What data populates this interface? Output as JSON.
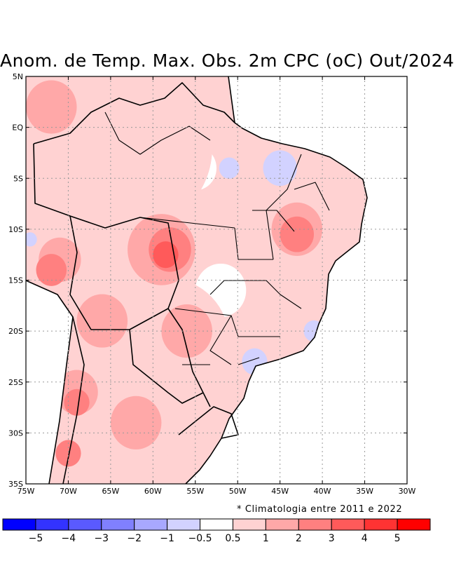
{
  "title": "Anom. de Temp. Max. Obs. 2m CPC (oC) Out/2024",
  "note": "* Climatologia entre 2011 e 2022",
  "map": {
    "lon_min": -75,
    "lon_max": -30,
    "lat_min": -35,
    "lat_max": 5,
    "lat_ticks": [
      {
        "value": 5,
        "label": "5N"
      },
      {
        "value": 0,
        "label": "EQ"
      },
      {
        "value": -5,
        "label": "5S"
      },
      {
        "value": -10,
        "label": "10S"
      },
      {
        "value": -15,
        "label": "15S"
      },
      {
        "value": -20,
        "label": "20S"
      },
      {
        "value": -25,
        "label": "25S"
      },
      {
        "value": -30,
        "label": "30S"
      },
      {
        "value": -35,
        "label": "35S"
      }
    ],
    "lon_ticks": [
      {
        "value": -75,
        "label": "75W"
      },
      {
        "value": -70,
        "label": "70W"
      },
      {
        "value": -65,
        "label": "65W"
      },
      {
        "value": -60,
        "label": "60W"
      },
      {
        "value": -55,
        "label": "55W"
      },
      {
        "value": -50,
        "label": "50W"
      },
      {
        "value": -45,
        "label": "45W"
      },
      {
        "value": -40,
        "label": "40W"
      },
      {
        "value": -35,
        "label": "35W"
      },
      {
        "value": -30,
        "label": "30W"
      }
    ]
  },
  "colorbar": {
    "colors": [
      "#0000ff",
      "#3333ff",
      "#5a5aff",
      "#8080ff",
      "#a8a8ff",
      "#d2d2ff",
      "#ffffff",
      "#ffd2d2",
      "#ffa8a8",
      "#ff8080",
      "#ff5a5a",
      "#ff3333",
      "#ff0000"
    ],
    "labels": [
      "−5",
      "−4",
      "−3",
      "−2",
      "−1",
      "−0.5",
      "0.5",
      "1",
      "2",
      "3",
      "4",
      "5"
    ]
  },
  "anomaly_blobs": [
    {
      "lon": -62,
      "lat": -2,
      "r": 9,
      "v": 1
    },
    {
      "lon": -67,
      "lat": -18,
      "r": 7,
      "v": 1
    },
    {
      "lon": -58,
      "lat": -21,
      "r": 7,
      "v": 1
    },
    {
      "lon": -63,
      "lat": -29,
      "r": 6,
      "v": 1
    },
    {
      "lon": -45,
      "lat": -12,
      "r": 5,
      "v": 1
    },
    {
      "lon": -41,
      "lat": -15,
      "r": 3,
      "v": 1
    },
    {
      "lon": -51,
      "lat": -28,
      "r": 4,
      "v": 1
    },
    {
      "lon": -72,
      "lat": 2,
      "r": 3,
      "v": 2
    },
    {
      "lon": -59,
      "lat": -12,
      "r": 4,
      "v": 2
    },
    {
      "lon": -43,
      "lat": -10,
      "r": 3,
      "v": 2
    },
    {
      "lon": -66,
      "lat": -19,
      "r": 3,
      "v": 2
    },
    {
      "lon": -56,
      "lat": -20,
      "r": 3,
      "v": 2
    },
    {
      "lon": -62,
      "lat": -29,
      "r": 3,
      "v": 2
    },
    {
      "lon": -69,
      "lat": -26,
      "r": 2.5,
      "v": 2
    },
    {
      "lon": -71,
      "lat": -13,
      "r": 2.5,
      "v": 2
    },
    {
      "lon": -58,
      "lat": -12,
      "r": 2.5,
      "v": 3
    },
    {
      "lon": -43,
      "lat": -10.5,
      "r": 2,
      "v": 3
    },
    {
      "lon": -72,
      "lat": -14,
      "r": 1.8,
      "v": 3
    },
    {
      "lon": -69,
      "lat": -27,
      "r": 1.5,
      "v": 3
    },
    {
      "lon": -70,
      "lat": -32,
      "r": 1.5,
      "v": 3
    },
    {
      "lon": -58.5,
      "lat": -12.5,
      "r": 1.5,
      "v": 4
    },
    {
      "lon": -45,
      "lat": -4,
      "r": 2,
      "v": -1
    },
    {
      "lon": -51,
      "lat": -4,
      "r": 1.2,
      "v": -1
    },
    {
      "lon": -41,
      "lat": -20,
      "r": 1.2,
      "v": -1
    },
    {
      "lon": -48,
      "lat": -23,
      "r": 1.5,
      "v": -1
    },
    {
      "lon": -74.5,
      "lat": -11,
      "r": 0.8,
      "v": -1
    },
    {
      "lon": -55,
      "lat": -4,
      "r": 2.5,
      "v": 0
    },
    {
      "lon": -61,
      "lat": -4,
      "r": 1.5,
      "v": 0
    },
    {
      "lon": -52,
      "lat": -16,
      "r": 3,
      "v": 0
    },
    {
      "lon": -64,
      "lat": -31,
      "r": 1,
      "v": 0
    }
  ]
}
